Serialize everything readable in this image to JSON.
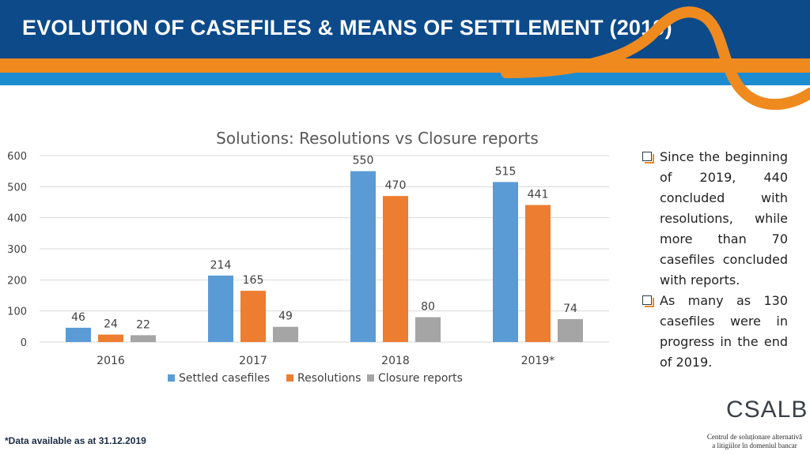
{
  "header": {
    "title": "EVOLUTION OF CASEFILES & MEANS OF SETTLEMENT (2019)"
  },
  "colors": {
    "header_bg": "#0c4a8a",
    "accent_orange": "#ef8a1f",
    "accent_blue": "#1d8bd0",
    "series_settled": "#5b9bd5",
    "series_resolutions": "#ed7d31",
    "series_closure": "#a5a5a5"
  },
  "chart_data": {
    "type": "bar",
    "title": "Solutions: Resolutions vs Closure reports",
    "categories": [
      "2016",
      "2017",
      "2018",
      "2019*"
    ],
    "series": [
      {
        "name": "Settled casefiles",
        "values": [
          46,
          214,
          550,
          515
        ]
      },
      {
        "name": "Resolutions",
        "values": [
          24,
          165,
          470,
          441
        ]
      },
      {
        "name": "Closure reports",
        "values": [
          22,
          49,
          80,
          74
        ]
      }
    ],
    "y_ticks": [
      "0",
      "100",
      "200",
      "300",
      "400",
      "500",
      "600"
    ],
    "ylim": [
      0,
      600
    ],
    "grid": true,
    "legend_position": "bottom",
    "xlabel": "",
    "ylabel": ""
  },
  "side_notes": [
    "Since the beginning of 2019, 440 concluded with resolutions, while more than 70 casefiles concluded with reports.",
    "As many as 130 casefiles were in progress in the end of 2019."
  ],
  "footnote": "*Data available as at 31.12.2019",
  "logo": {
    "text": "CSALB",
    "line1": "Centrul de soluționare alternativă",
    "line2": "a litigiilor în domeniul bancar"
  }
}
